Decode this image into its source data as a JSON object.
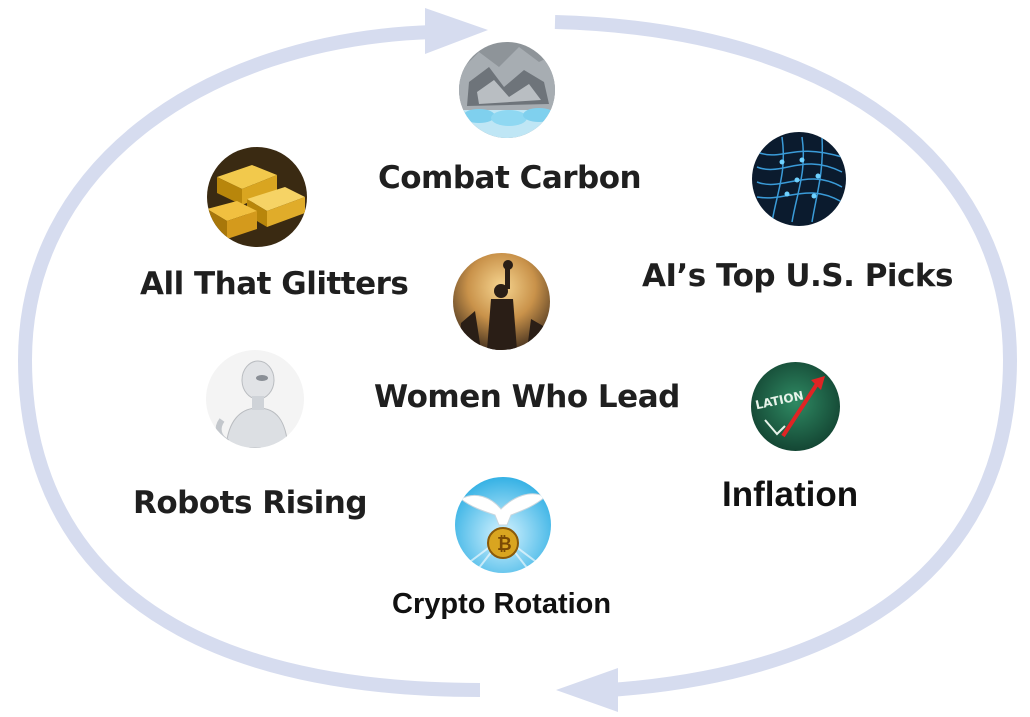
{
  "diagram": {
    "themes": [
      {
        "id": "combat-carbon",
        "label": "Combat Carbon",
        "icon": "ice-rock-icon"
      },
      {
        "id": "all-that-glitters",
        "label": "All That Glitters",
        "icon": "gold-bars-icon"
      },
      {
        "id": "ai-top-us-picks",
        "label": "AI’s Top U.S. Picks",
        "icon": "neural-network-icon"
      },
      {
        "id": "women-who-lead",
        "label": "Women Who Lead",
        "icon": "statue-of-liberty-icon"
      },
      {
        "id": "robots-rising",
        "label": "Robots Rising",
        "icon": "robot-icon"
      },
      {
        "id": "inflation",
        "label": "Inflation",
        "icon": "inflation-chart-icon"
      },
      {
        "id": "crypto-rotation",
        "label": "Crypto Rotation",
        "icon": "dove-bitcoin-icon"
      }
    ],
    "icon_texts": {
      "inflation": "LATION"
    },
    "colors": {
      "cycle_arrow": "#d6dcef",
      "label_text": "#1f1f1f",
      "background": "#ffffff"
    }
  }
}
